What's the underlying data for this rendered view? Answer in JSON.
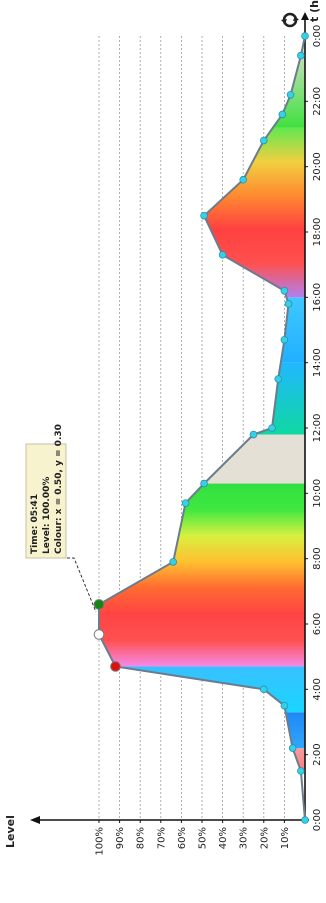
{
  "header": {
    "refresh_icon": "refresh-icon",
    "x_axis_label": "t (h)"
  },
  "chart_data": {
    "type": "area",
    "title": "",
    "xlabel": "t (h)",
    "ylabel": "Level",
    "xlim": [
      0,
      24
    ],
    "ylim": [
      0,
      100
    ],
    "x_ticks": [
      "0:00",
      "2:00",
      "4:00",
      "6:00",
      "8:00",
      "10:00",
      "12:00",
      "14:00",
      "16:00",
      "18:00",
      "20:00",
      "22:00",
      "0:00"
    ],
    "y_ticks": [
      "100%",
      "90%",
      "80%",
      "70%",
      "60%",
      "50%",
      "40%",
      "30%",
      "20%",
      "10%"
    ],
    "y_tick_values": [
      100,
      90,
      80,
      70,
      60,
      50,
      40,
      30,
      20,
      10
    ],
    "grid": true,
    "points": [
      {
        "t": 0.0,
        "level": 0
      },
      {
        "t": 1.5,
        "level": 2
      },
      {
        "t": 2.2,
        "level": 6
      },
      {
        "t": 3.5,
        "level": 10
      },
      {
        "t": 4.0,
        "level": 20
      },
      {
        "t": 4.7,
        "level": 92
      },
      {
        "t": 5.68,
        "level": 100
      },
      {
        "t": 6.6,
        "level": 100
      },
      {
        "t": 7.9,
        "level": 64
      },
      {
        "t": 9.7,
        "level": 58
      },
      {
        "t": 10.3,
        "level": 49
      },
      {
        "t": 11.8,
        "level": 25
      },
      {
        "t": 12.0,
        "level": 16
      },
      {
        "t": 13.5,
        "level": 13
      },
      {
        "t": 14.7,
        "level": 10
      },
      {
        "t": 15.8,
        "level": 8
      },
      {
        "t": 16.2,
        "level": 10
      },
      {
        "t": 17.3,
        "level": 40
      },
      {
        "t": 18.5,
        "level": 49
      },
      {
        "t": 19.6,
        "level": 30
      },
      {
        "t": 20.8,
        "level": 20
      },
      {
        "t": 21.6,
        "level": 11
      },
      {
        "t": 22.2,
        "level": 7
      },
      {
        "t": 23.4,
        "level": 2
      },
      {
        "t": 24.0,
        "level": 0
      }
    ],
    "highlight_points": [
      {
        "t": 4.7,
        "level": 92,
        "color": "#e01010"
      },
      {
        "t": 5.68,
        "level": 100,
        "color": "#ffffff"
      },
      {
        "t": 6.6,
        "level": 100,
        "color": "#118811"
      }
    ],
    "colour_bands": [
      {
        "t0": 0.0,
        "t1": 1.5,
        "stops": [
          "#ffffff",
          "#ffffff"
        ]
      },
      {
        "t0": 1.5,
        "t1": 2.2,
        "stops": [
          "#ff7a7a",
          "#f0a0a0"
        ]
      },
      {
        "t0": 2.2,
        "t1": 3.3,
        "stops": [
          "#2fa6ff",
          "#1e88f5"
        ]
      },
      {
        "t0": 3.3,
        "t1": 4.7,
        "stops": [
          "#19d6ff",
          "#39c0ff"
        ]
      },
      {
        "t0": 4.7,
        "t1": 10.3,
        "stops": [
          "#f58ae8",
          "#ff5050",
          "#ff4444",
          "#ff6a30",
          "#ffc030",
          "#d8f040",
          "#40e840",
          "#30e040"
        ]
      },
      {
        "t0": 10.3,
        "t1": 11.8,
        "stops": [
          "#e5e0d6",
          "#e5e0d6"
        ]
      },
      {
        "t0": 11.8,
        "t1": 14.0,
        "stops": [
          "#10d8a0",
          "#20b8ff"
        ]
      },
      {
        "t0": 14.0,
        "t1": 16.0,
        "stops": [
          "#20b0ff",
          "#40c8ff"
        ]
      },
      {
        "t0": 16.0,
        "t1": 21.2,
        "stops": [
          "#b080f0",
          "#ff5050",
          "#ff4040",
          "#ff8a30",
          "#f0d040",
          "#60e850"
        ]
      },
      {
        "t0": 21.2,
        "t1": 24.0,
        "stops": [
          "#40e040",
          "#e5e0d6"
        ]
      }
    ],
    "tooltip": {
      "time": "Time: 05:41",
      "level": "Level: 100.00%",
      "colour": "Colour: x = 0.50, y = 0.30"
    }
  }
}
